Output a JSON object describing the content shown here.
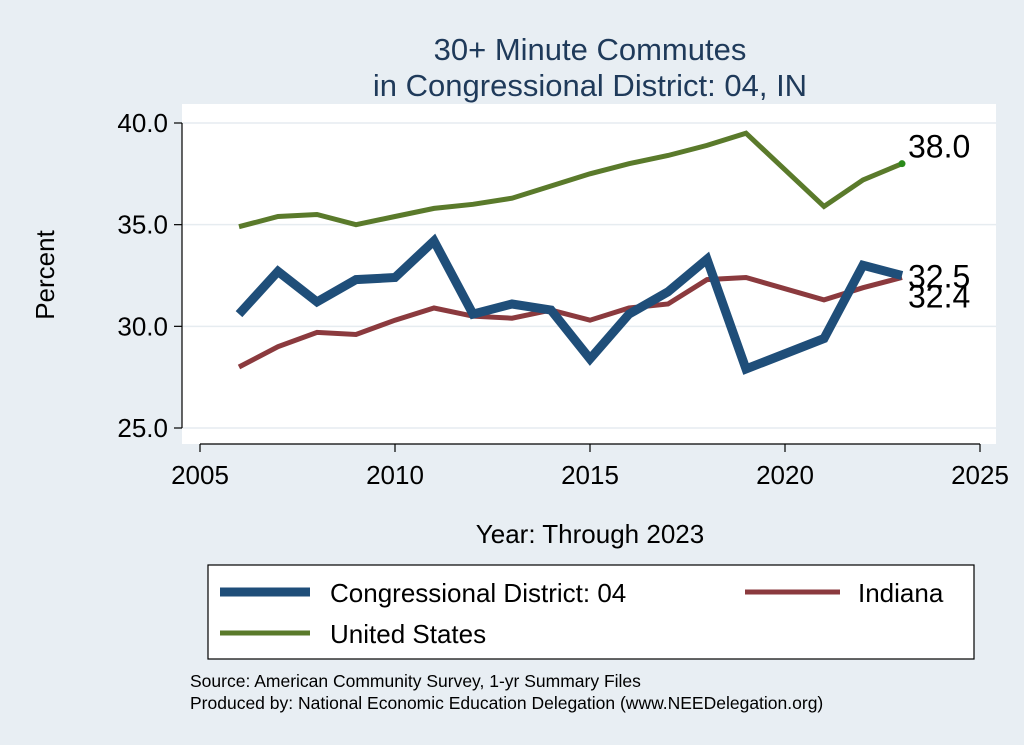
{
  "chart_data": {
    "type": "line",
    "title": [
      "30+ Minute Commutes",
      "in Congressional District:  04, IN"
    ],
    "xlabel": "Year: Through 2023",
    "ylabel": "Percent",
    "xlim": [
      2005,
      2025
    ],
    "ylim": [
      25,
      40
    ],
    "xticks": [
      2005,
      2010,
      2015,
      2020,
      2025
    ],
    "yticks": [
      25,
      30,
      35,
      40
    ],
    "ytick_labels": [
      "25.0",
      "30.0",
      "35.0",
      "40.0"
    ],
    "grid": true,
    "legend_position": "bottom",
    "series": [
      {
        "name": "Congressional District:  04",
        "color": "#1f4e79",
        "x": [
          2006,
          2007,
          2008,
          2009,
          2010,
          2011,
          2012,
          2013,
          2014,
          2015,
          2016,
          2017,
          2018,
          2019,
          2021,
          2022,
          2023
        ],
        "values": [
          30.6,
          32.7,
          31.2,
          32.3,
          32.4,
          34.2,
          30.6,
          31.1,
          30.8,
          28.4,
          30.6,
          31.7,
          33.3,
          27.9,
          29.4,
          33.0,
          32.5
        ],
        "end_label": "32.5"
      },
      {
        "name": "Indiana",
        "color": "#8b3a3e",
        "x": [
          2006,
          2007,
          2008,
          2009,
          2010,
          2011,
          2012,
          2013,
          2014,
          2015,
          2016,
          2017,
          2018,
          2019,
          2021,
          2022,
          2023
        ],
        "values": [
          28.0,
          29.0,
          29.7,
          29.6,
          30.3,
          30.9,
          30.5,
          30.4,
          30.8,
          30.3,
          30.9,
          31.1,
          32.3,
          32.4,
          31.3,
          31.9,
          32.4
        ],
        "end_label": "32.4"
      },
      {
        "name": "United States",
        "color": "#5a7a2b",
        "x": [
          2006,
          2007,
          2008,
          2009,
          2010,
          2011,
          2012,
          2013,
          2014,
          2015,
          2016,
          2017,
          2018,
          2019,
          2021,
          2022,
          2023
        ],
        "values": [
          34.9,
          35.4,
          35.5,
          35.0,
          35.4,
          35.8,
          36.0,
          36.3,
          36.9,
          37.5,
          38.0,
          38.4,
          38.9,
          39.5,
          35.9,
          37.2,
          38.0
        ],
        "end_label": "38.0"
      }
    ],
    "source_lines": [
      "Source: American Community Survey, 1-yr Summary Files",
      "Produced by: National Economic Education Delegation (www.NEEDelegation.org)"
    ]
  }
}
